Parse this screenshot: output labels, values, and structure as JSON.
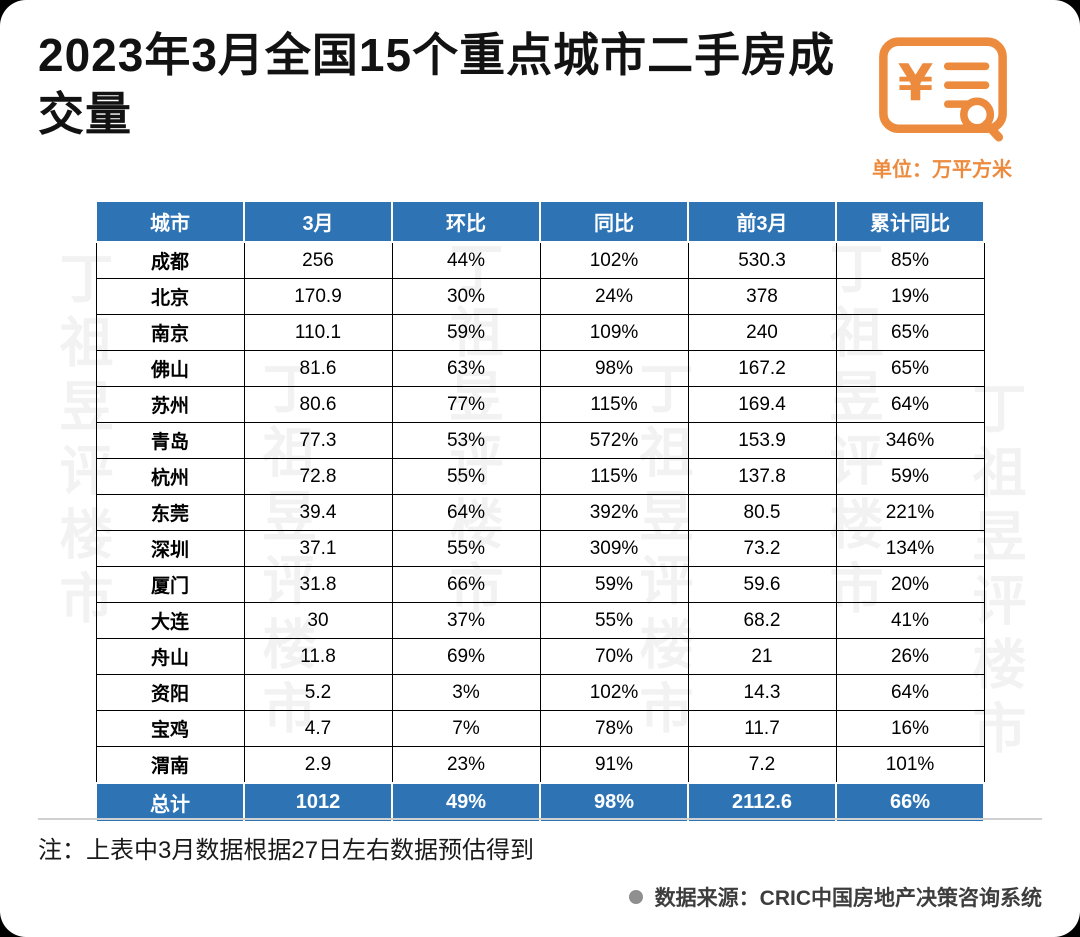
{
  "title": "2023年3月全国15个重点城市二手房成交量",
  "unit_label": "单位：万平方米",
  "note": "注：上表中3月数据根据27日左右数据预估得到",
  "source_label": "数据来源：CRIC中国房地产决策咨询系统",
  "watermark": "丁祖昱评楼市",
  "colors": {
    "header_blue": "#2e74b5",
    "accent_orange": "#ec8b3e"
  },
  "chart_data": {
    "type": "table",
    "title": "2023年3月全国15个重点城市二手房成交量",
    "unit": "万平方米",
    "columns": [
      "城市",
      "3月",
      "环比",
      "同比",
      "前3月",
      "累计同比"
    ],
    "rows": [
      [
        "成都",
        "256",
        "44%",
        "102%",
        "530.3",
        "85%"
      ],
      [
        "北京",
        "170.9",
        "30%",
        "24%",
        "378",
        "19%"
      ],
      [
        "南京",
        "110.1",
        "59%",
        "109%",
        "240",
        "65%"
      ],
      [
        "佛山",
        "81.6",
        "63%",
        "98%",
        "167.2",
        "65%"
      ],
      [
        "苏州",
        "80.6",
        "77%",
        "115%",
        "169.4",
        "64%"
      ],
      [
        "青岛",
        "77.3",
        "53%",
        "572%",
        "153.9",
        "346%"
      ],
      [
        "杭州",
        "72.8",
        "55%",
        "115%",
        "137.8",
        "59%"
      ],
      [
        "东莞",
        "39.4",
        "64%",
        "392%",
        "80.5",
        "221%"
      ],
      [
        "深圳",
        "37.1",
        "55%",
        "309%",
        "73.2",
        "134%"
      ],
      [
        "厦门",
        "31.8",
        "66%",
        "59%",
        "59.6",
        "20%"
      ],
      [
        "大连",
        "30",
        "37%",
        "55%",
        "68.2",
        "41%"
      ],
      [
        "舟山",
        "11.8",
        "69%",
        "70%",
        "21",
        "26%"
      ],
      [
        "资阳",
        "5.2",
        "3%",
        "102%",
        "14.3",
        "64%"
      ],
      [
        "宝鸡",
        "4.7",
        "7%",
        "78%",
        "11.7",
        "16%"
      ],
      [
        "渭南",
        "2.9",
        "23%",
        "91%",
        "7.2",
        "101%"
      ]
    ],
    "total_row": [
      "总计",
      "1012",
      "49%",
      "98%",
      "2112.6",
      "66%"
    ]
  }
}
